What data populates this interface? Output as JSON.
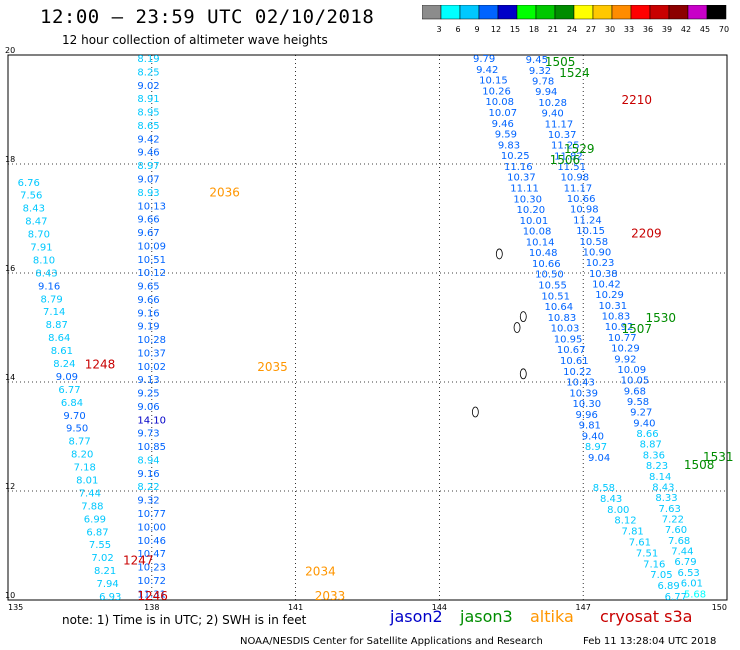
{
  "header": {
    "title": "12:00 — 23:59 UTC 02/10/2018",
    "subtitle": "12 hour collection of altimeter wave heights"
  },
  "colorbar": {
    "labels": [
      "3",
      "6",
      "9",
      "12",
      "15",
      "18",
      "21",
      "24",
      "27",
      "30",
      "33",
      "36",
      "39",
      "42",
      "45",
      "70",
      "(ft)"
    ],
    "colors": [
      "#8c8c8c",
      "#00ffff",
      "#00c8ff",
      "#0064ff",
      "#0000c8",
      "#00ff00",
      "#00c800",
      "#008c00",
      "#ffff00",
      "#ffc800",
      "#ff8c00",
      "#ff0000",
      "#c80000",
      "#8c0000",
      "#c800c8",
      "#000000"
    ]
  },
  "satellites": [
    {
      "name": "jason2",
      "color": "#0000c8"
    },
    {
      "name": "jason3",
      "color": "#008c00"
    },
    {
      "name": "altika",
      "color": "#ff9600"
    },
    {
      "name": "cryosat s3a",
      "color": "#c80000"
    }
  ],
  "footer": {
    "note": "note:  1) Time is in UTC;  2) SWH is in feet",
    "credit": "NOAA/NESDIS Center for Satellite Applications and Research",
    "generated": "Feb 11 13:28:04 UTC 2018"
  },
  "chart_data": {
    "type": "scatter",
    "title": "12 hour collection of altimeter wave heights",
    "xlim": [
      135,
      150
    ],
    "ylim": [
      10,
      20
    ],
    "x_ticks": [
      "135",
      "138",
      "141",
      "144",
      "147",
      "150"
    ],
    "y_ticks": [
      "10",
      "12",
      "14",
      "16",
      "18",
      "20"
    ],
    "grid": true,
    "tracks": [
      {
        "x0": 137.7,
        "y0": 19.87,
        "x1": 137.7,
        "y1": 10.05,
        "values": [
          8.19,
          8.25,
          9.02,
          8.91,
          8.95,
          8.65,
          9.42,
          9.46,
          8.97,
          9.07,
          8.93,
          10.13,
          9.66,
          9.67,
          10.09,
          10.51,
          10.12,
          9.65,
          9.66,
          9.16,
          9.19,
          10.28,
          10.37,
          10.02,
          9.13,
          9.25,
          9.06,
          14.1,
          9.73,
          10.85,
          8.94,
          9.16,
          8.22,
          9.32,
          10.77,
          10.0,
          10.46,
          10.47,
          10.23,
          10.72,
          11.31
        ]
      },
      {
        "x0": 135.2,
        "y0": 17.6,
        "x1": 136.9,
        "y1": 10.0,
        "values": [
          6.76,
          7.56,
          8.43,
          8.47,
          8.7,
          7.91,
          8.1,
          8.43,
          9.16,
          8.79,
          7.14,
          8.87,
          8.64,
          8.61,
          8.24,
          9.09,
          6.77,
          6.84,
          9.7,
          9.5,
          8.77,
          8.2,
          7.18,
          8.01,
          7.44,
          7.88,
          6.99,
          6.87,
          7.55,
          7.02,
          8.21,
          7.94,
          6.93
        ]
      },
      {
        "x0": 144.7,
        "y0": 19.87,
        "x1": 147.1,
        "y1": 12.55,
        "values": [
          9.79,
          9.42,
          10.15,
          10.26,
          10.08,
          10.07,
          9.46,
          9.59,
          9.83,
          10.25,
          11.16,
          10.37,
          11.11,
          10.3,
          10.2,
          10.01,
          10.08,
          10.14,
          10.48,
          10.66,
          10.5,
          10.55,
          10.51,
          10.64,
          10.83,
          10.03,
          10.95,
          10.67,
          10.61,
          10.22,
          10.43,
          10.39,
          10.3,
          9.96,
          9.81,
          9.4,
          8.97,
          9.04
        ]
      },
      {
        "x0": 145.8,
        "y0": 19.85,
        "x1": 149.1,
        "y1": 10.05,
        "values": [
          9.45,
          9.32,
          9.78,
          9.94,
          10.28,
          9.4,
          11.17,
          10.37,
          11.25,
          11.82,
          11.51,
          10.98,
          11.17,
          10.66,
          10.98,
          11.24,
          10.15,
          10.58,
          10.9,
          10.23,
          10.38,
          10.42,
          10.29,
          10.31,
          10.83,
          10.92,
          10.77,
          10.29,
          9.92,
          10.09,
          10.05,
          9.68,
          9.58,
          9.27,
          9.4,
          8.66,
          8.87,
          8.36,
          8.23,
          8.14,
          8.43,
          8.33,
          7.63,
          7.22,
          7.6,
          7.68,
          7.44,
          6.79,
          6.53,
          6.01,
          5.68
        ]
      },
      {
        "x0": 147.2,
        "y0": 12.0,
        "x1": 148.7,
        "y1": 10.0,
        "values": [
          8.58,
          8.43,
          8.0,
          8.12,
          7.81,
          7.61,
          7.51,
          7.16,
          7.05,
          6.89,
          6.77
        ]
      }
    ],
    "track_labels": [
      {
        "label": "1505",
        "x": 146.2,
        "y": 19.8,
        "sat": "jason3"
      },
      {
        "label": "1524",
        "x": 146.5,
        "y": 19.6,
        "sat": "jason3"
      },
      {
        "label": "2210",
        "x": 147.8,
        "y": 19.1,
        "sat": "cryosat s3a"
      },
      {
        "label": "1529",
        "x": 146.6,
        "y": 18.2,
        "sat": "jason3"
      },
      {
        "label": "1506",
        "x": 146.3,
        "y": 18.0,
        "sat": "jason3"
      },
      {
        "label": "2036",
        "x": 139.2,
        "y": 17.4,
        "sat": "altika"
      },
      {
        "label": "2209",
        "x": 148.0,
        "y": 16.65,
        "sat": "cryosat s3a"
      },
      {
        "label": "1530",
        "x": 148.3,
        "y": 15.1,
        "sat": "jason3"
      },
      {
        "label": "1507",
        "x": 147.8,
        "y": 14.9,
        "sat": "jason3"
      },
      {
        "label": "1248",
        "x": 136.6,
        "y": 14.25,
        "sat": "cryosat s3a"
      },
      {
        "label": "2035",
        "x": 140.2,
        "y": 14.2,
        "sat": "altika"
      },
      {
        "label": "1531",
        "x": 149.5,
        "y": 12.55,
        "sat": "jason3"
      },
      {
        "label": "1508",
        "x": 149.1,
        "y": 12.4,
        "sat": "jason3"
      },
      {
        "label": "1247",
        "x": 137.4,
        "y": 10.65,
        "sat": "cryosat s3a"
      },
      {
        "label": "2034",
        "x": 141.2,
        "y": 10.45,
        "sat": "altika"
      },
      {
        "label": "1246",
        "x": 137.7,
        "y": 10.0,
        "sat": "cryosat s3a"
      },
      {
        "label": "2033",
        "x": 141.4,
        "y": 10.0,
        "sat": "altika"
      }
    ]
  }
}
